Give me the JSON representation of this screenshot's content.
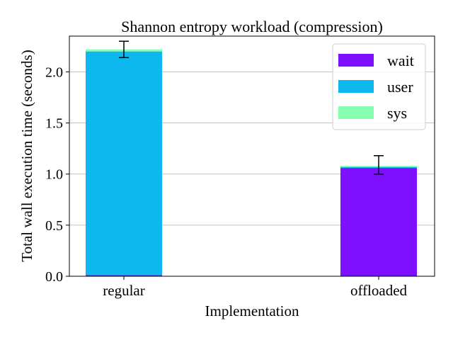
{
  "chart_data": {
    "type": "bar",
    "stacked": true,
    "title": "Shannon entropy workload (compression)",
    "xlabel": "Implementation",
    "ylabel": "Total wall execution time (seconds)",
    "categories": [
      "regular",
      "offloaded"
    ],
    "ylim": [
      0,
      2.35
    ],
    "yticks": [
      "0.0",
      "0.5",
      "1.0",
      "1.5",
      "2.0"
    ],
    "grid": "y",
    "legend_position": "top-right",
    "series": [
      {
        "name": "wait",
        "color": "#7f0fff",
        "values": [
          0.01,
          1.06
        ]
      },
      {
        "name": "user",
        "color": "#0cb8ee",
        "values": [
          2.19,
          0.01
        ]
      },
      {
        "name": "sys",
        "color": "#86ffb1",
        "values": [
          0.02,
          0.01
        ]
      }
    ],
    "error_bars": {
      "centers": [
        2.22,
        1.09
      ],
      "errors": [
        0.08,
        0.09
      ]
    }
  }
}
